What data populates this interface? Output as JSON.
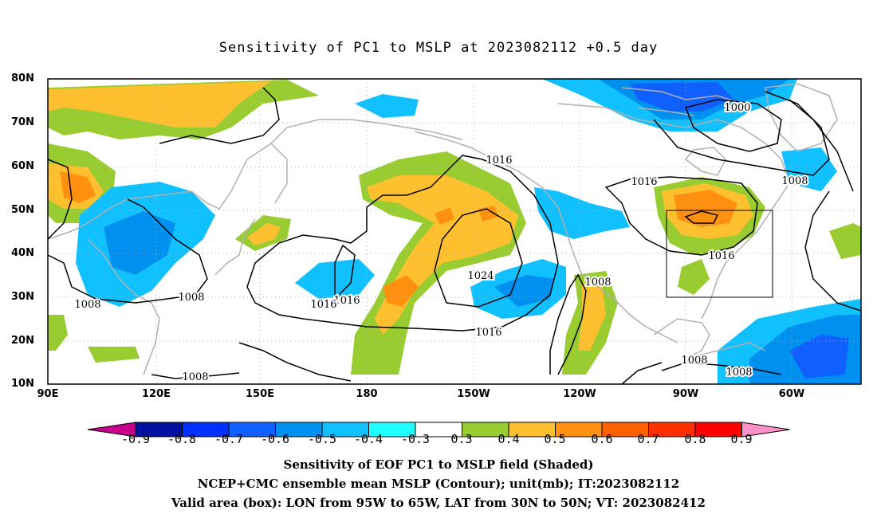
{
  "title": "Sensitivity of PC1 to MSLP at 2023082112 +0.5 day",
  "lat_labels": [
    "80N",
    "70N",
    "60N",
    "50N",
    "40N",
    "30N",
    "20N",
    "10N"
  ],
  "lon_labels": [
    "90E",
    "120E",
    "150E",
    "180",
    "150W",
    "120W",
    "90W",
    "60W"
  ],
  "colorbar": {
    "labels": [
      "-0.9",
      "-0.8",
      "-0.7",
      "-0.6",
      "-0.5",
      "-0.4",
      "-0.3",
      "0.3",
      "0.4",
      "0.5",
      "0.6",
      "0.7",
      "0.8",
      "0.9"
    ],
    "colors": [
      "#c8008c",
      "#0010a0",
      "#0030ff",
      "#1060ff",
      "#0090f0",
      "#10c0ff",
      "#20ffff",
      "#ffffff",
      "#98cc30",
      "#ffc030",
      "#ff9010",
      "#ff6000",
      "#ff3000",
      "#ff0000",
      "#ff90c8"
    ]
  },
  "contour_labels": [
    "1016",
    "1016",
    "1000",
    "1008",
    "1016",
    "1016",
    "1024",
    "1008",
    "1016",
    "1016",
    "1016",
    "1008",
    "1008",
    "1008",
    "1008",
    "1008"
  ],
  "captions": {
    "line1": "Sensitivity of EOF PC1 to MSLP field (Shaded)",
    "line2": "NCEP+CMC ensemble mean MSLP (Contour); unit(mb); IT:2023082112",
    "line3": "Valid area (box): LON from 95W to 65W, LAT from 30N to 50N; VT: 2023082412"
  }
}
